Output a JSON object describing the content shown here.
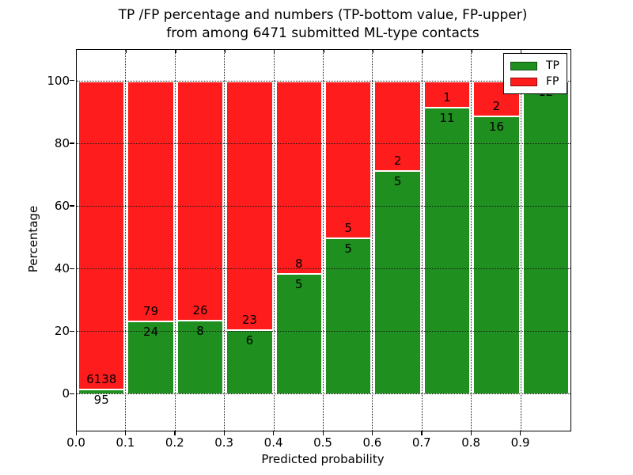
{
  "title": {
    "line1": "TP /FP percentage and numbers (TP-bottom value, FP-upper)",
    "line2": "from among 6471 submitted ML-type contacts"
  },
  "axes": {
    "xlabel": "Predicted probability",
    "ylabel": "Percentage",
    "x_tick_labels": [
      "0.0",
      "0.1",
      "0.2",
      "0.3",
      "0.4",
      "0.5",
      "0.6",
      "0.7",
      "0.8",
      "0.9"
    ],
    "y_tick_labels": [
      "0",
      "20",
      "40",
      "60",
      "80",
      "100"
    ],
    "y_tick_values": [
      0,
      20,
      40,
      60,
      80,
      100
    ]
  },
  "legend": {
    "entries": [
      {
        "label": "TP",
        "color": "#1f8f1f"
      },
      {
        "label": "FP",
        "color": "#ff1c1c"
      }
    ],
    "position": "upper right"
  },
  "chart_data": {
    "type": "bar",
    "stacked": true,
    "normalized": "each bar scaled to 100%",
    "title": "TP /FP percentage and numbers (TP-bottom value, FP-upper) from among 6471 submitted ML-type contacts",
    "xlabel": "Predicted probability",
    "ylabel": "Percentage",
    "categories": [
      "0.0-0.1",
      "0.1-0.2",
      "0.2-0.3",
      "0.3-0.4",
      "0.4-0.5",
      "0.5-0.6",
      "0.6-0.7",
      "0.7-0.8",
      "0.8-0.9",
      "0.9-1.0"
    ],
    "series": [
      {
        "name": "TP",
        "color": "#1f8f1f",
        "counts": [
          95,
          24,
          8,
          6,
          5,
          5,
          5,
          11,
          16,
          12
        ]
      },
      {
        "name": "FP",
        "color": "#ff1c1c",
        "counts": [
          6138,
          79,
          26,
          23,
          8,
          5,
          2,
          1,
          2,
          0
        ]
      }
    ],
    "tp_percent": [
      1.52,
      23.3,
      23.53,
      20.69,
      38.46,
      50.0,
      71.43,
      91.67,
      88.89,
      100.0
    ],
    "total_contacts": 6471,
    "xlim": [
      0.0,
      1.0
    ],
    "ylim": [
      -11.5,
      110
    ],
    "grid": true,
    "grid_style": "dotted",
    "legend_position": "upper right"
  }
}
